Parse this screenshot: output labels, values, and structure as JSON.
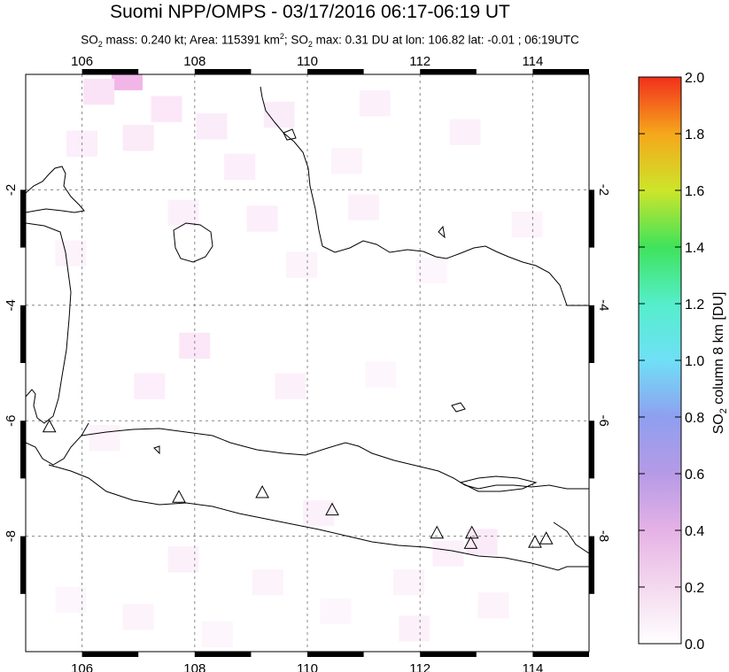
{
  "title": "Suomi NPP/OMPS - 03/17/2016 06:17-06:19 UT",
  "subtitle": {
    "prefix": "SO",
    "sub": "2",
    "mass": " mass: 0.240 kt; Area: 115391 km",
    "sup": "2",
    "sep": "; SO",
    "sub2": "2",
    "rest": " max: 0.31 DU at lon: 106.82 lat: -0.01 ; 06:19UTC"
  },
  "colorbar": {
    "label_prefix": "SO",
    "label_sub": "2",
    "label_rest": " column 8 km [DU]",
    "min": 0.0,
    "max": 2.0,
    "ticks": [
      "0.0",
      "0.2",
      "0.4",
      "0.6",
      "0.8",
      "1.0",
      "1.2",
      "1.4",
      "1.6",
      "1.8",
      "2.0"
    ]
  },
  "chart_data": {
    "type": "heatmap",
    "lon_range": [
      105,
      115
    ],
    "lat_range": [
      -10,
      0
    ],
    "x_ticks": [
      106,
      108,
      110,
      112,
      114
    ],
    "y_ticks": [
      -2,
      -4,
      -6,
      -8
    ],
    "x_tick_labels": [
      "106",
      "108",
      "110",
      "112",
      "114"
    ],
    "y_tick_labels": [
      "-2",
      "-4",
      "-6",
      "-8"
    ],
    "grid": "dashed",
    "max_value": 0.31,
    "max_location": {
      "lon": 106.82,
      "lat": -0.01
    },
    "volcanoes": [
      {
        "lon": 105.42,
        "lat": -6.1
      },
      {
        "lon": 107.72,
        "lat": -7.32
      },
      {
        "lon": 109.2,
        "lat": -7.24
      },
      {
        "lon": 110.44,
        "lat": -7.54
      },
      {
        "lon": 112.3,
        "lat": -7.94
      },
      {
        "lon": 112.92,
        "lat": -7.94
      },
      {
        "lon": 112.9,
        "lat": -8.12
      },
      {
        "lon": 114.04,
        "lat": -8.1
      },
      {
        "lon": 114.24,
        "lat": -8.04
      }
    ],
    "so2_cells": [
      {
        "lon": 106.8,
        "lat": -0.05,
        "v": 0.31
      },
      {
        "lon": 106.3,
        "lat": -0.3,
        "v": 0.12
      },
      {
        "lon": 107.5,
        "lat": -0.6,
        "v": 0.1
      },
      {
        "lon": 108.3,
        "lat": -0.9,
        "v": 0.08
      },
      {
        "lon": 106.0,
        "lat": -1.2,
        "v": 0.07
      },
      {
        "lon": 107.0,
        "lat": -1.1,
        "v": 0.09
      },
      {
        "lon": 109.5,
        "lat": -0.7,
        "v": 0.08
      },
      {
        "lon": 111.2,
        "lat": -0.5,
        "v": 0.06
      },
      {
        "lon": 112.8,
        "lat": -1.0,
        "v": 0.06
      },
      {
        "lon": 108.8,
        "lat": -1.6,
        "v": 0.07
      },
      {
        "lon": 110.7,
        "lat": -1.5,
        "v": 0.05
      },
      {
        "lon": 107.8,
        "lat": -2.4,
        "v": 0.06
      },
      {
        "lon": 109.2,
        "lat": -2.5,
        "v": 0.07
      },
      {
        "lon": 111.0,
        "lat": -2.3,
        "v": 0.06
      },
      {
        "lon": 113.9,
        "lat": -2.6,
        "v": 0.05
      },
      {
        "lon": 105.8,
        "lat": -3.1,
        "v": 0.05
      },
      {
        "lon": 109.9,
        "lat": -3.3,
        "v": 0.05
      },
      {
        "lon": 112.2,
        "lat": -3.4,
        "v": 0.04
      },
      {
        "lon": 108.0,
        "lat": -4.7,
        "v": 0.1
      },
      {
        "lon": 107.2,
        "lat": -5.4,
        "v": 0.07
      },
      {
        "lon": 109.7,
        "lat": -5.4,
        "v": 0.06
      },
      {
        "lon": 111.3,
        "lat": -5.2,
        "v": 0.04
      },
      {
        "lon": 106.4,
        "lat": -6.3,
        "v": 0.05
      },
      {
        "lon": 110.2,
        "lat": -7.6,
        "v": 0.06
      },
      {
        "lon": 113.1,
        "lat": -8.1,
        "v": 0.09
      },
      {
        "lon": 112.5,
        "lat": -8.3,
        "v": 0.06
      },
      {
        "lon": 107.8,
        "lat": -8.4,
        "v": 0.06
      },
      {
        "lon": 109.3,
        "lat": -8.8,
        "v": 0.05
      },
      {
        "lon": 111.8,
        "lat": -8.8,
        "v": 0.05
      },
      {
        "lon": 105.8,
        "lat": -9.1,
        "v": 0.04
      },
      {
        "lon": 107.0,
        "lat": -9.4,
        "v": 0.05
      },
      {
        "lon": 110.5,
        "lat": -9.3,
        "v": 0.04
      },
      {
        "lon": 113.3,
        "lat": -9.2,
        "v": 0.05
      },
      {
        "lon": 108.4,
        "lat": -9.7,
        "v": 0.04
      },
      {
        "lon": 111.9,
        "lat": -9.6,
        "v": 0.06
      }
    ],
    "colors": {
      "land_outline": "#000000",
      "grid": "#888888",
      "frame": "#000000"
    }
  }
}
